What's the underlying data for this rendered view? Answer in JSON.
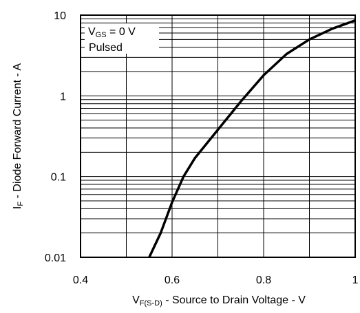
{
  "chart_data": {
    "type": "line",
    "x_scale": "linear",
    "y_scale": "log",
    "xlim": [
      0.4,
      1.0
    ],
    "ylim": [
      0.01,
      10
    ],
    "grid": true,
    "x_ticks": [
      "0.4",
      "0.6",
      "0.8",
      "1"
    ],
    "y_ticks": [
      "0.01",
      "0.1",
      "1",
      "10"
    ],
    "xlabel": {
      "prefix": "V",
      "sub": "F(S-D)",
      "suffix": " - Source to Drain Voltage - V"
    },
    "ylabel": {
      "prefix": "I",
      "sub": "F",
      "suffix": " - Diode Forward Current - A"
    },
    "annotations": [
      {
        "prefix": "V",
        "sub": "GS",
        "suffix": " = 0 V"
      },
      {
        "text": "Pulsed"
      }
    ],
    "series": [
      {
        "x": [
          0.55,
          0.575,
          0.6,
          0.625,
          0.65,
          0.7,
          0.75,
          0.8,
          0.85,
          0.9,
          0.95,
          1.0
        ],
        "y": [
          0.01,
          0.02,
          0.048,
          0.1,
          0.17,
          0.38,
          0.85,
          1.8,
          3.3,
          5.0,
          6.8,
          8.6
        ]
      }
    ],
    "colors": {
      "line": "#000000",
      "grid": "#000000",
      "background": "#ffffff"
    }
  }
}
